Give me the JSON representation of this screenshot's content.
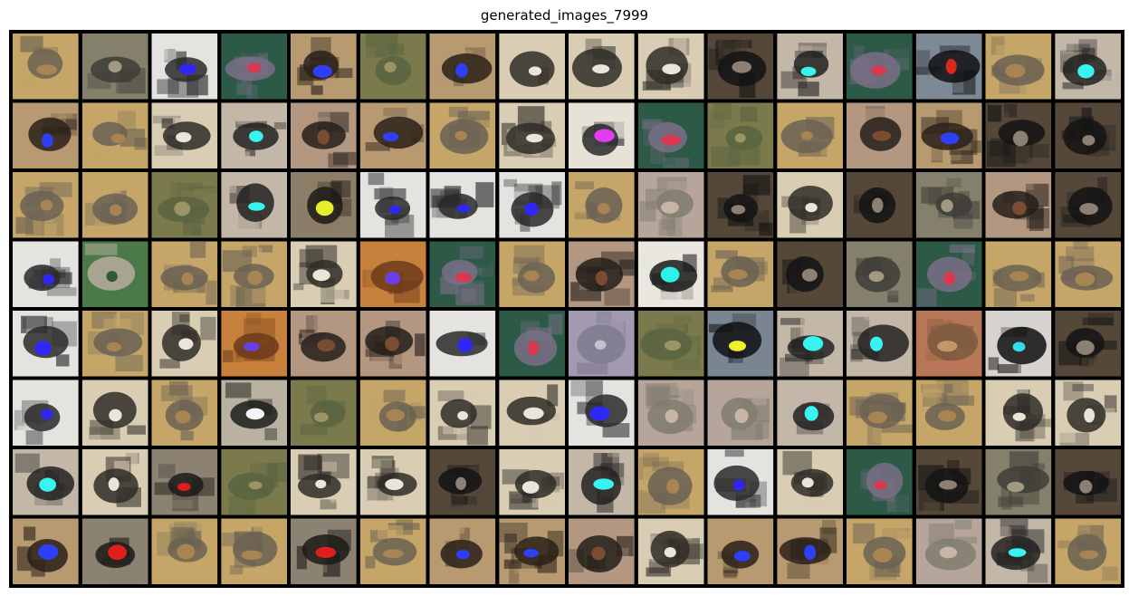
{
  "figure": {
    "title": "generated_images_7999"
  },
  "grid": {
    "rows": 8,
    "cols": 16,
    "border_color": "#000000",
    "background_color": "#ffffff"
  },
  "tiles": [
    [
      "stripes",
      "grey",
      "white-blue",
      "green",
      "blue",
      "olive",
      "blue",
      "white",
      "white",
      "white",
      "dark",
      "cyan",
      "green",
      "dark-red",
      "stripes",
      "cyan"
    ],
    [
      "blue",
      "stripes",
      "white",
      "cyan",
      "brown",
      "blue",
      "stripes",
      "white",
      "magenta",
      "green",
      "olive",
      "stripes",
      "brown",
      "blue",
      "dark",
      "dark"
    ],
    [
      "stripes",
      "stripes",
      "olive",
      "cyan",
      "yellow",
      "white-blue",
      "white-blue",
      "white-blue",
      "stripes",
      "pale",
      "dark",
      "white",
      "dark",
      "grey",
      "brown",
      "dark"
    ],
    [
      "white-blue",
      "green-map",
      "stripes",
      "stripes",
      "white",
      "purple-ring",
      "green",
      "stripes",
      "brown",
      "white-cyan",
      "stripes",
      "dark",
      "grey",
      "green",
      "stripes",
      "stripes"
    ],
    [
      "white-blue",
      "stripes",
      "white",
      "purple-ring",
      "brown",
      "brown",
      "white-blue",
      "green",
      "lavender",
      "olive",
      "yellow-splash",
      "cyan",
      "cyan",
      "orange",
      "cyan-dark",
      "dark"
    ],
    [
      "white-blue",
      "white",
      "stripes",
      "white-dot",
      "olive",
      "stripes",
      "white",
      "white",
      "white-blue",
      "pale",
      "pale",
      "cyan",
      "stripes",
      "stripes",
      "white",
      "white"
    ],
    [
      "cyan",
      "white",
      "red-dots",
      "olive",
      "white",
      "white",
      "dark",
      "white",
      "cyan",
      "stripes",
      "white-blue",
      "white",
      "green",
      "dark",
      "grey",
      "dark"
    ],
    [
      "blue",
      "red-dots",
      "stripes",
      "stripes",
      "red-dots",
      "stripes",
      "blue",
      "blue",
      "brown",
      "white",
      "blue",
      "blue",
      "stripes",
      "pale",
      "cyan",
      "stripes"
    ]
  ],
  "tile_palettes": {
    "stripes": [
      "#c5a668",
      "#6b6254",
      "#a88453"
    ],
    "grey": [
      "#84806c",
      "#3e3d37",
      "#a19980"
    ],
    "white-blue": [
      "#e5e3e0",
      "#2a2a2c",
      "#2f27f6"
    ],
    "green": [
      "#2d5a46",
      "#7a6f86",
      "#d8394e"
    ],
    "blue": [
      "#b89a71",
      "#2a2119",
      "#2f3ef7"
    ],
    "olive": [
      "#7b7a4c",
      "#5a6441",
      "#9c9467"
    ],
    "white": [
      "#d9cdb4",
      "#2f2c27",
      "#eae5d8"
    ],
    "dark": [
      "#554839",
      "#141414",
      "#8c8075"
    ],
    "cyan": [
      "#c3b7a8",
      "#232221",
      "#38f4f1"
    ],
    "dark-red": [
      "#7d8994",
      "#101114",
      "#d62a1b"
    ],
    "brown": [
      "#b39780",
      "#251f1a",
      "#7a4c31"
    ],
    "magenta": [
      "#e7e1d8",
      "#28292a",
      "#e23df0"
    ],
    "yellow": [
      "#8c7d67",
      "#1d1a16",
      "#e7ee2a"
    ],
    "pale": [
      "#b6a59a",
      "#807c6f",
      "#c7b6a8"
    ],
    "green-map": [
      "#4a7a48",
      "#b7ad9f",
      "#2d5a3a"
    ],
    "purple-ring": [
      "#c7813c",
      "#6f3b1a",
      "#6b3fe6"
    ],
    "white-cyan": [
      "#e9e7df",
      "#1a1b1a",
      "#2cf2e8"
    ],
    "lavender": [
      "#a29ab1",
      "#7f7b8e",
      "#c6bfcf"
    ],
    "yellow-splash": [
      "#7a8592",
      "#0f1214",
      "#f0f02c"
    ],
    "orange": [
      "#b87756",
      "#7d5a3f",
      "#c2986b"
    ],
    "cyan-dark": [
      "#d7d3cf",
      "#0f0f10",
      "#37d9f0"
    ],
    "white-dot": [
      "#bab2a0",
      "#1e1d1a",
      "#f3f5fb"
    ],
    "red-dots": [
      "#8c8272",
      "#1c1b18",
      "#e01e1e"
    ]
  }
}
